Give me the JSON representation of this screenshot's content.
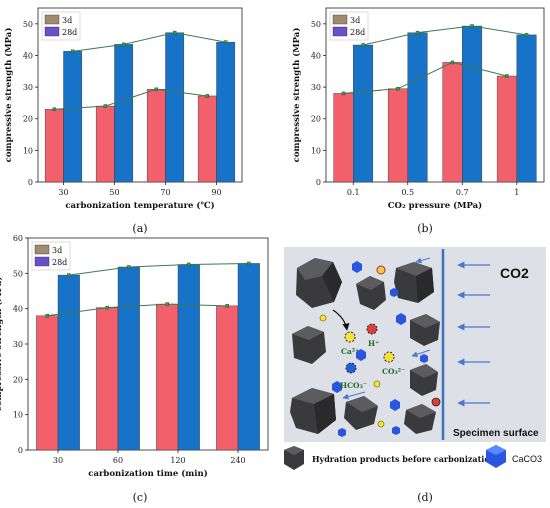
{
  "chart_data": [
    {
      "type": "bar",
      "panel_label": "(a)",
      "categories": [
        "30",
        "50",
        "70",
        "90"
      ],
      "xlabel": "carbonization temperature (℃)",
      "ylabel": "compressive strength (MPa)",
      "ylim": [
        0,
        55
      ],
      "yticks": [
        "0",
        "10",
        "20",
        "30",
        "40",
        "50"
      ],
      "legend_position": "top-left",
      "series": [
        {
          "name": "3d",
          "values": [
            23,
            24,
            29.3,
            27.2
          ],
          "color": "#f2606b"
        },
        {
          "name": "28d",
          "values": [
            41.3,
            43.5,
            47.2,
            44.2
          ],
          "color": "#1773c7"
        }
      ]
    },
    {
      "type": "bar",
      "panel_label": "(b)",
      "categories": [
        "0.1",
        "0.5",
        "0.7",
        "1"
      ],
      "xlabel": "CO₂ pressure (MPa)",
      "ylabel": "compressive strength (MPa)",
      "ylim": [
        0,
        55
      ],
      "yticks": [
        "0",
        "10",
        "20",
        "30",
        "40",
        "50"
      ],
      "legend_position": "top-left",
      "series": [
        {
          "name": "3d",
          "values": [
            28,
            29.5,
            37.8,
            33.5
          ],
          "color": "#f2606b"
        },
        {
          "name": "28d",
          "values": [
            43.3,
            47.2,
            49.3,
            46.5
          ],
          "color": "#1773c7"
        }
      ]
    },
    {
      "type": "bar",
      "panel_label": "(c)",
      "categories": [
        "30",
        "60",
        "120",
        "240"
      ],
      "xlabel": "carbonization time (min)",
      "ylabel": "compressive strength (MPa)",
      "ylim": [
        0,
        60
      ],
      "yticks": [
        "0",
        "10",
        "20",
        "30",
        "40",
        "50",
        "60"
      ],
      "legend_position": "top-left",
      "series": [
        {
          "name": "3d",
          "values": [
            38,
            40.3,
            41.3,
            40.8
          ],
          "color": "#f2606b"
        },
        {
          "name": "28d",
          "values": [
            49.5,
            51.8,
            52.5,
            52.8
          ],
          "color": "#1773c7"
        }
      ]
    }
  ],
  "diagram": {
    "panel_label": "(d)",
    "gas_label": "CO2",
    "surface_label": "Specimen surface",
    "ions": [
      "Ca²⁺",
      "H⁺",
      "CO₃²⁻",
      "HCO₃⁻"
    ],
    "legend_hydration": "Hydration products before carbonization",
    "legend_caco3": "CaCO3",
    "colors": {
      "panel_bg": "#dde1e7",
      "surface_line": "#3a72c0",
      "arrow": "#4a78cf",
      "crystal": "#2a55e0"
    }
  }
}
